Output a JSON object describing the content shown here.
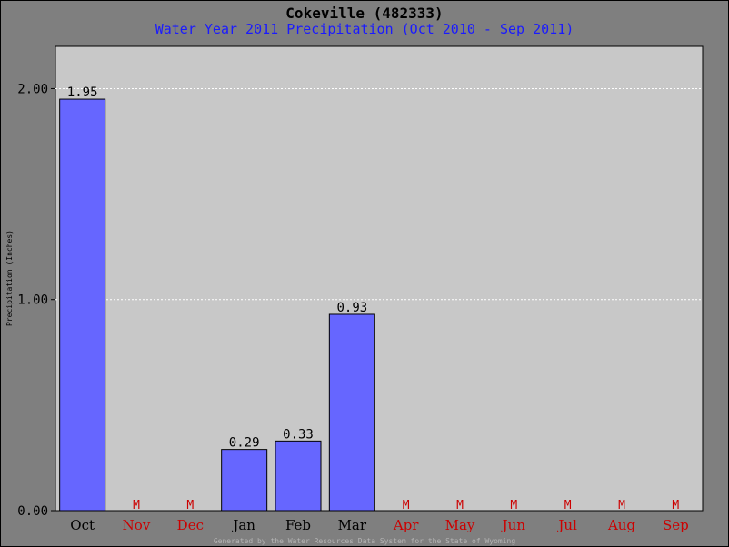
{
  "chart_data": {
    "type": "bar",
    "title": "Cokeville (482333)",
    "subtitle": "Water Year 2011 Precipitation (Oct 2010 - Sep 2011)",
    "ylabel": "Precipitation (Inches)",
    "xlabel": "",
    "categories": [
      "Oct",
      "Nov",
      "Dec",
      "Jan",
      "Feb",
      "Mar",
      "Apr",
      "May",
      "Jun",
      "Jul",
      "Aug",
      "Sep"
    ],
    "values": [
      1.95,
      null,
      null,
      0.29,
      0.33,
      0.93,
      null,
      null,
      null,
      null,
      null,
      null
    ],
    "value_labels": [
      "1.95",
      "M",
      "M",
      "0.29",
      "0.33",
      "0.93",
      "M",
      "M",
      "M",
      "M",
      "M",
      "M"
    ],
    "missing_marker": "M",
    "ylim": [
      0,
      2.2
    ],
    "yticks": [
      0,
      1,
      2
    ],
    "ytick_labels": [
      "0.00",
      "1.00",
      "2.00"
    ],
    "grid": true,
    "legend": "none",
    "colors": {
      "bar": "#6666ff",
      "plot_bg": "#c8c8c8",
      "background": "#7f7f7f",
      "title": "#000000",
      "subtitle": "#1a1aff",
      "missing": "#cc0000",
      "footer": "#b5b5b5"
    }
  },
  "footer": "Generated by the Water Resources Data System for the State of Wyoming"
}
